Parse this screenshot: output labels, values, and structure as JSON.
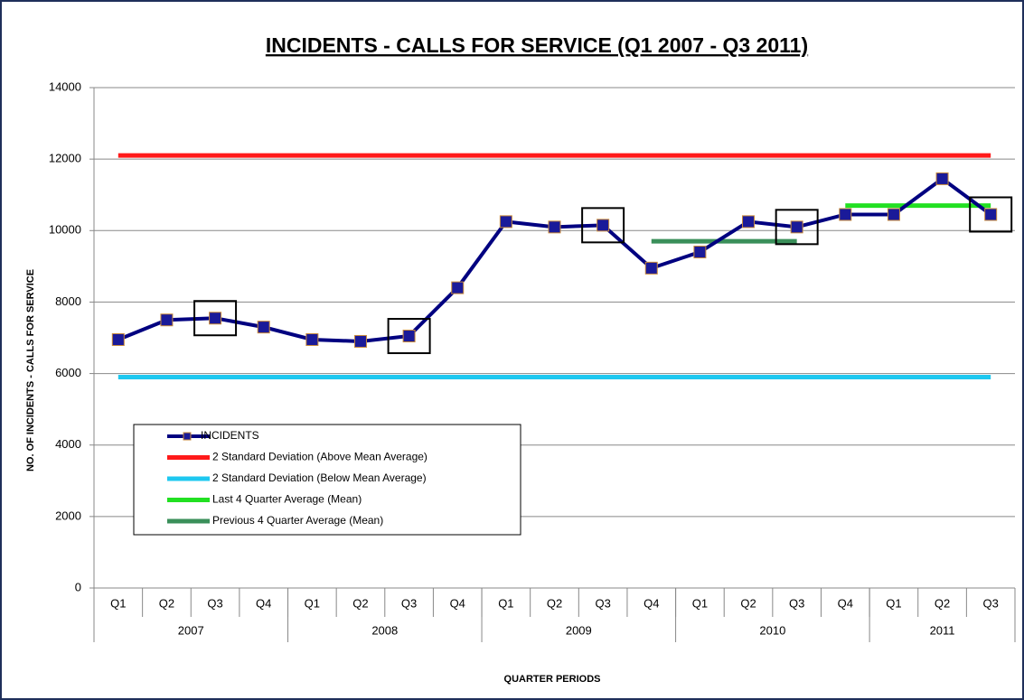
{
  "chart_data": {
    "type": "line",
    "title": "INCIDENTS - CALLS FOR SERVICE (Q1 2007 - Q3 2011)",
    "x_label": "QUARTER PERIODS",
    "y_label": "NO. OF INCIDENTS - CALLS FOR SERVICE",
    "categories": [
      "Q1",
      "Q2",
      "Q3",
      "Q4",
      "Q1",
      "Q2",
      "Q3",
      "Q4",
      "Q1",
      "Q2",
      "Q3",
      "Q4",
      "Q1",
      "Q2",
      "Q3",
      "Q4",
      "Q1",
      "Q2",
      "Q3"
    ],
    "category_groups": [
      "2007",
      "2008",
      "2009",
      "2010",
      "2011"
    ],
    "ylim": [
      0,
      14000
    ],
    "yticks": [
      0,
      2000,
      4000,
      6000,
      8000,
      10000,
      12000,
      14000
    ],
    "grid": true,
    "series": [
      {
        "name": "INCIDENTS",
        "color": "#000080",
        "marker_color": "#1a1a99",
        "values": [
          6950,
          7500,
          7550,
          7300,
          6950,
          6900,
          7050,
          8400,
          10250,
          10100,
          10150,
          8950,
          9400,
          10250,
          10100,
          10450,
          10450,
          11450,
          10450
        ]
      },
      {
        "name": "2 Standard Deviation (Above Mean Average)",
        "color": "#ff1a1a",
        "values": [
          12100,
          12100,
          12100,
          12100,
          12100,
          12100,
          12100,
          12100,
          12100,
          12100,
          12100,
          12100,
          12100,
          12100,
          12100,
          12100,
          12100,
          12100,
          12100
        ]
      },
      {
        "name": "2 Standard Deviation (Below Mean Average)",
        "color": "#1ec8f0",
        "values": [
          5900,
          5900,
          5900,
          5900,
          5900,
          5900,
          5900,
          5900,
          5900,
          5900,
          5900,
          5900,
          5900,
          5900,
          5900,
          5900,
          5900,
          5900,
          5900
        ]
      },
      {
        "name": "Last 4 Quarter Average (Mean)",
        "color": "#22e022",
        "values": [
          null,
          null,
          null,
          null,
          null,
          null,
          null,
          null,
          null,
          null,
          null,
          null,
          null,
          null,
          null,
          10700,
          10700,
          10700,
          10700
        ]
      },
      {
        "name": "Previous 4 Quarter Average (Mean)",
        "color": "#3a8f5a",
        "values": [
          null,
          null,
          null,
          null,
          null,
          null,
          null,
          null,
          null,
          null,
          null,
          9700,
          9700,
          9700,
          9700,
          null,
          null,
          null,
          null
        ]
      }
    ]
  }
}
